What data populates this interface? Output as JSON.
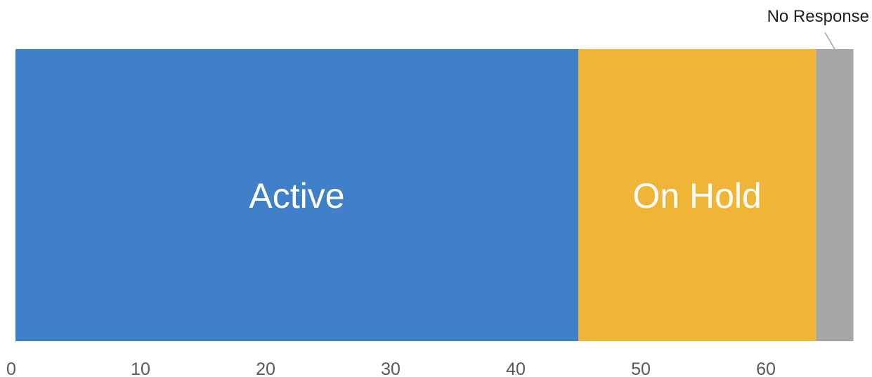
{
  "chart_data": {
    "type": "bar",
    "orientation": "horizontal",
    "stacked": true,
    "title": "",
    "xlabel": "",
    "ylabel": "",
    "xlim": [
      0,
      67
    ],
    "x_ticks": [
      0,
      10,
      20,
      30,
      40,
      50,
      60
    ],
    "grid": false,
    "legend": "none",
    "series": [
      {
        "name": "Active",
        "value": 45,
        "color": "#4080C8"
      },
      {
        "name": "On Hold",
        "value": 19,
        "color": "#F0B436"
      },
      {
        "name": "No Response",
        "value": 3,
        "color": "#A6A6A6"
      }
    ]
  }
}
